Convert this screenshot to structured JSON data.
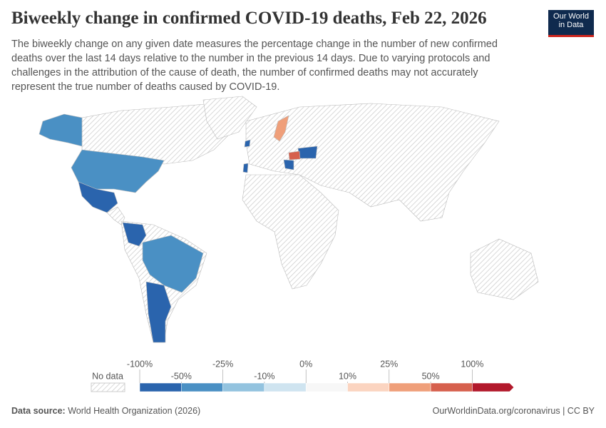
{
  "header": {
    "title": "Biweekly change in confirmed COVID-19 deaths, Feb 22, 2026",
    "subtitle": "The biweekly change on any given date measures the percentage change in the number of new confirmed deaths over the last 14 days relative to the number in the previous 14 days. Due to varying protocols and challenges in the attribution of the cause of death, the number of confirmed deaths may not accurately represent the true number of deaths caused by COVID-19."
  },
  "logo": {
    "line1": "Our World",
    "line2": "in Data"
  },
  "legend": {
    "no_data": "No data",
    "labels": [
      "-100%",
      "-50%",
      "-25%",
      "-10%",
      "0%",
      "10%",
      "25%",
      "50%",
      "100%"
    ],
    "colors": [
      "#2a64ad",
      "#4a90c4",
      "#93c3df",
      "#cfe4f0",
      "#f7f7f7",
      "#fbd4c0",
      "#ef9f7a",
      "#d6604d",
      "#b2182b"
    ]
  },
  "footer": {
    "source_label": "Data source:",
    "source": "World Health Organization (2026)",
    "url": "OurWorldinData.org/coronavirus | CC BY"
  }
}
